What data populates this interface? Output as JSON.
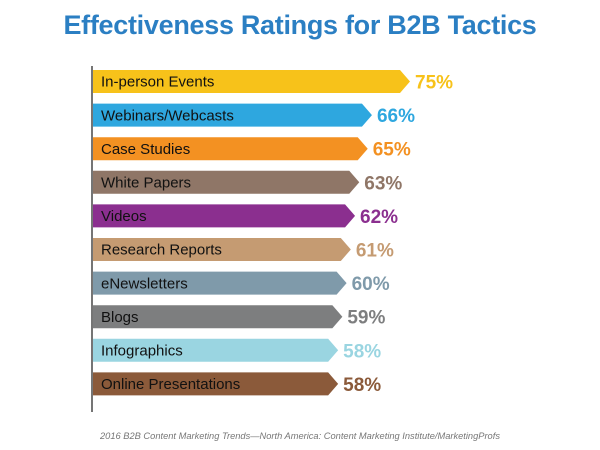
{
  "chart_data": {
    "type": "bar",
    "orientation": "horizontal",
    "title": "Effectiveness Ratings for B2B Tactics",
    "categories": [
      "In-person Events",
      "Webinars/Webcasts",
      "Case Studies",
      "White Papers",
      "Videos",
      "Research Reports",
      "eNewsletters",
      "Blogs",
      "Infographics",
      "Online Presentations"
    ],
    "values": [
      75,
      66,
      65,
      63,
      62,
      61,
      60,
      59,
      58,
      58
    ],
    "value_labels": [
      "75%",
      "66%",
      "65%",
      "63%",
      "62%",
      "61%",
      "60%",
      "59%",
      "58%",
      "58%"
    ],
    "colors": [
      "#f7c21a",
      "#2ea7df",
      "#f39122",
      "#8f7667",
      "#8b2f8f",
      "#c59b72",
      "#7f9aaa",
      "#7d7e7f",
      "#9ad5e1",
      "#8b5a3a"
    ],
    "xlim": [
      0,
      75
    ],
    "grid": false,
    "legend": "none",
    "source": "2016 B2B Content Marketing Trends—North America: Content Marketing Institute/MarketingProfs"
  }
}
